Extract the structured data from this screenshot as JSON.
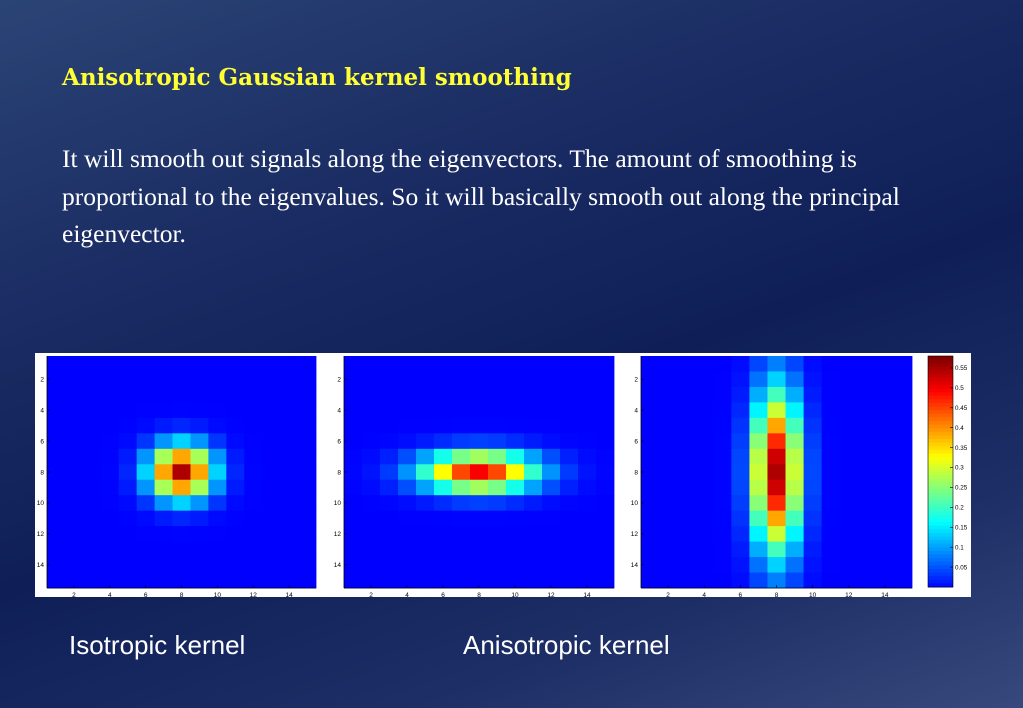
{
  "slide": {
    "title": "Anisotropic Gaussian kernel smoothing",
    "body": "It will smooth out signals along the eigenvectors. The amount of smoothing is proportional to the eigenvalues. So it will basically smooth out along the principal eigenvector.",
    "caption_isotropic": "Isotropic kernel",
    "caption_anisotropic": "Anisotropic kernel"
  },
  "chart_data": [
    {
      "type": "heatmap",
      "size": [
        15,
        15
      ],
      "x_ticks": [
        "2",
        "4",
        "6",
        "8",
        "10",
        "12",
        "14"
      ],
      "y_ticks": [
        "2",
        "4",
        "6",
        "8",
        "10",
        "12",
        "14"
      ],
      "kernel": {
        "center": [
          8,
          8
        ],
        "sigma_x": 1.2,
        "sigma_y": 1.2,
        "peak": 0.55
      },
      "colormap": "jet",
      "clim": [
        0,
        0.58
      ]
    },
    {
      "type": "heatmap",
      "size": [
        15,
        15
      ],
      "x_ticks": [
        "2",
        "4",
        "6",
        "8",
        "10",
        "12",
        "14"
      ],
      "y_ticks": [
        "2",
        "4",
        "6",
        "8",
        "10",
        "12",
        "14"
      ],
      "kernel": {
        "center": [
          8,
          8
        ],
        "sigma_x": 2.2,
        "sigma_y": 0.9,
        "peak": 0.5
      },
      "colormap": "jet",
      "clim": [
        0,
        0.58
      ]
    },
    {
      "type": "heatmap",
      "size": [
        15,
        15
      ],
      "x_ticks": [
        "2",
        "4",
        "6",
        "8",
        "10",
        "12",
        "14"
      ],
      "y_ticks": [
        "2",
        "4",
        "6",
        "8",
        "10",
        "12",
        "14"
      ],
      "kernel": {
        "center": [
          8,
          8
        ],
        "sigma_x": 0.9,
        "sigma_y": 3.6,
        "peak": 0.55
      },
      "colormap": "jet",
      "clim": [
        0,
        0.58
      ]
    }
  ],
  "colorbar": {
    "ticks": [
      0.55,
      0.5,
      0.45,
      0.4,
      0.35,
      0.3,
      0.25,
      0.2,
      0.15,
      0.1,
      0.05
    ],
    "tick_labels": [
      "0.55",
      "0.5",
      "0.45",
      "0.4",
      "0.35",
      "0.3",
      "0.25",
      "0.2",
      "0.15",
      "0.1",
      "0.05"
    ],
    "range": [
      0,
      0.58
    ]
  }
}
